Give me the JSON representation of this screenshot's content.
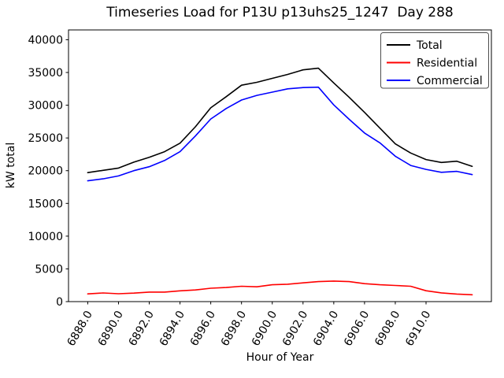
{
  "figure": {
    "kind": "matplotlib-line-plot"
  },
  "chart_data": {
    "type": "line",
    "title": "Timeseries Load for P13U p13uhs25_1247  Day 288",
    "xlabel": "Hour of Year",
    "ylabel": "kW total",
    "grid": false,
    "legend_position": "upper right",
    "x_tick_rotation": 60,
    "xlim": [
      6886.75,
      6914.25
    ],
    "ylim": [
      0,
      41500
    ],
    "x_ticks": [
      6888,
      6890,
      6892,
      6894,
      6896,
      6898,
      6900,
      6902,
      6904,
      6906,
      6908,
      6910
    ],
    "x_tick_labels": [
      "6888.0",
      "6890.0",
      "6892.0",
      "6894.0",
      "6896.0",
      "6898.0",
      "6900.0",
      "6902.0",
      "6904.0",
      "6906.0",
      "6908.0",
      "6910.0"
    ],
    "y_ticks": [
      0,
      5000,
      10000,
      15000,
      20000,
      25000,
      30000,
      35000,
      40000
    ],
    "y_tick_labels": [
      "0",
      "5000",
      "10000",
      "15000",
      "20000",
      "25000",
      "30000",
      "35000",
      "40000"
    ],
    "x": [
      6888,
      6889,
      6890,
      6891,
      6892,
      6893,
      6894,
      6895,
      6896,
      6897,
      6898,
      6899,
      6900,
      6901,
      6902,
      6903,
      6904,
      6905,
      6906,
      6907,
      6908,
      6909,
      6910,
      6911,
      6912,
      6913
    ],
    "series": [
      {
        "name": "Total",
        "color": "#000000",
        "values": [
          19700,
          20050,
          20400,
          21300,
          22050,
          22900,
          24200,
          26700,
          29600,
          31300,
          33050,
          33500,
          34100,
          34700,
          35400,
          35650,
          33400,
          31200,
          28900,
          26500,
          24100,
          22700,
          21700,
          21250,
          21450,
          20650
        ]
      },
      {
        "name": "Residential",
        "color": "#ff0000",
        "values": [
          1180,
          1320,
          1200,
          1300,
          1450,
          1460,
          1650,
          1780,
          2050,
          2150,
          2340,
          2260,
          2580,
          2660,
          2860,
          3060,
          3140,
          3060,
          2740,
          2580,
          2460,
          2340,
          1660,
          1340,
          1150,
          1050
        ]
      },
      {
        "name": "Commercial",
        "color": "#0000ff",
        "values": [
          18450,
          18750,
          19200,
          20000,
          20600,
          21550,
          22900,
          25300,
          27900,
          29500,
          30800,
          31500,
          32000,
          32500,
          32700,
          32750,
          30050,
          27850,
          25750,
          24250,
          22200,
          20800,
          20200,
          19750,
          19900,
          19400
        ]
      }
    ]
  }
}
